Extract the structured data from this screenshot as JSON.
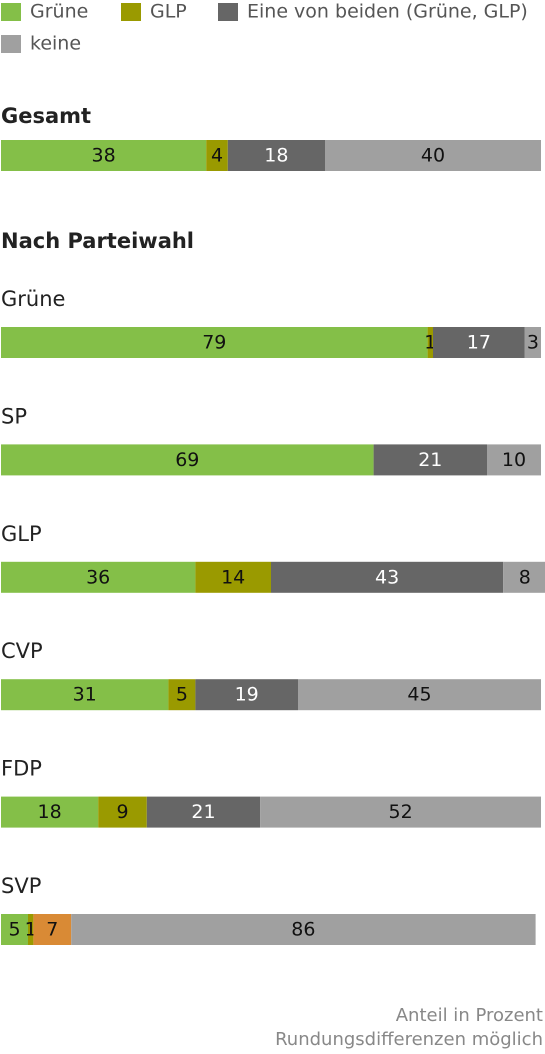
{
  "chart_data": {
    "type": "stacked-bar",
    "section_title": "Nach Parteiwahl",
    "categories": [
      "Gesamt",
      "Grüne",
      "SP",
      "GLP",
      "CVP",
      "FDP",
      "SVP"
    ],
    "series": [
      {
        "name": "Grüne",
        "color": "#84bf48",
        "values": [
          38,
          79,
          69,
          36,
          31,
          18,
          5
        ]
      },
      {
        "name": "GLP",
        "color": "#9a9a00",
        "values": [
          4,
          1,
          null,
          14,
          5,
          9,
          1
        ]
      },
      {
        "name": "Eine von beiden (Grüne, GLP)",
        "color": "#666666",
        "colors": [
          "#666666",
          "#666666",
          "#666666",
          "#666666",
          "#666666",
          "#666666",
          "#d98a35"
        ],
        "values": [
          18,
          17,
          21,
          43,
          19,
          21,
          7
        ]
      },
      {
        "name": "keine",
        "color": "#a0a0a0",
        "values": [
          40,
          3,
          10,
          8,
          45,
          52,
          86
        ]
      }
    ],
    "xlim": [
      0,
      100
    ],
    "notes": [
      "Anteil in Prozent",
      "Rundungsdifferenzen möglich"
    ]
  }
}
